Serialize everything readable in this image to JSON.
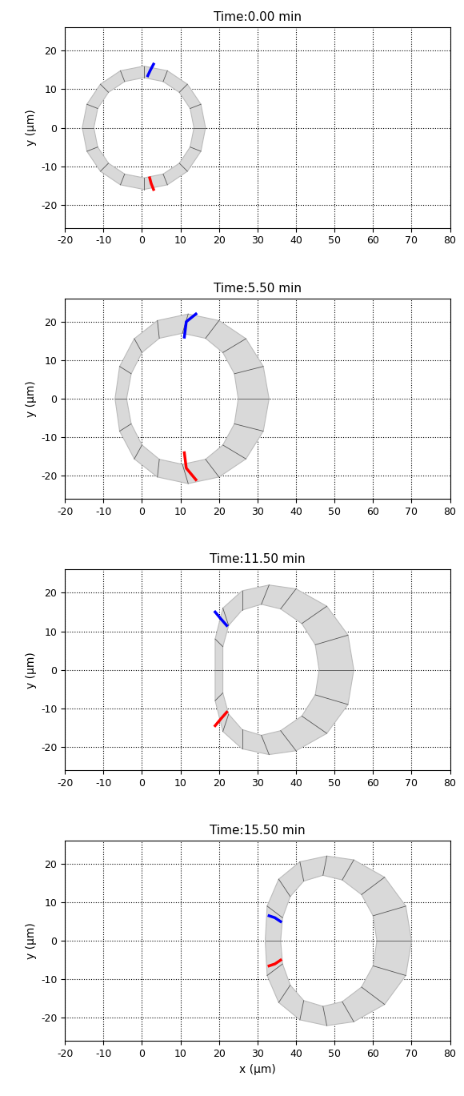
{
  "chart_data": [
    {
      "type": "shape",
      "title": "Time:0.00 min",
      "ylabel": "y (μm)",
      "xlim": [
        -20,
        80
      ],
      "ylim": [
        -26,
        26
      ],
      "xticks": [
        -20,
        -10,
        0,
        10,
        20,
        30,
        40,
        50,
        60,
        70,
        80
      ],
      "yticks": [
        -20,
        -10,
        0,
        10,
        20
      ],
      "grid": true,
      "outer": {
        "x": [
          16.5,
          15.3,
          11.8,
          6.6,
          0.5,
          -5.6,
          -10.8,
          -14.3,
          -15.5,
          -14.3,
          -10.8,
          -5.6,
          0.5,
          6.6,
          11.8,
          15.3
        ],
        "y": [
          0,
          6.1,
          11.3,
          14.8,
          16,
          14.8,
          11.3,
          6.1,
          0,
          -6.1,
          -11.3,
          -14.8,
          -16,
          -14.8,
          -11.3,
          -6.1
        ]
      },
      "inner": {
        "x": [
          13.5,
          12.5,
          9.7,
          5.5,
          0.5,
          -4.5,
          -8.7,
          -11.5,
          -12.5,
          -11.5,
          -8.7,
          -4.5,
          0.5,
          5.5,
          9.7,
          12.5
        ],
        "y": [
          0,
          5,
          9.2,
          12,
          13,
          12,
          9.2,
          5,
          0,
          -5,
          -9.2,
          -12,
          -13,
          -12,
          -9.2,
          -5
        ]
      },
      "markers": [
        {
          "color": "#0000ff",
          "x": [
            1.5,
            2.2,
            3
          ],
          "y": [
            13.5,
            15,
            16.5
          ]
        },
        {
          "color": "#ff0000",
          "x": [
            2,
            2.4,
            3
          ],
          "y": [
            -13,
            -14.5,
            -16
          ]
        }
      ]
    },
    {
      "type": "shape",
      "title": "Time:5.50 min",
      "ylabel": "y (μm)",
      "xlim": [
        -20,
        80
      ],
      "ylim": [
        -26,
        26
      ],
      "xticks": [
        -20,
        -10,
        0,
        10,
        20,
        30,
        40,
        50,
        60,
        70,
        80
      ],
      "yticks": [
        -20,
        -10,
        0,
        10,
        20
      ],
      "grid": true,
      "outer": {
        "x": [
          33,
          31.5,
          27,
          20,
          12,
          4,
          -2,
          -5.8,
          -7,
          -5.8,
          -2,
          4,
          12,
          20,
          27,
          31.5
        ],
        "y": [
          0,
          8.4,
          15.6,
          20.3,
          22,
          20.3,
          15.6,
          8.4,
          0,
          -8.4,
          -15.6,
          -20.3,
          -22,
          -20.3,
          -15.6,
          -8.4
        ]
      },
      "inner": {
        "x": [
          25,
          24,
          21,
          16.5,
          10.5,
          4.5,
          0,
          -2.8,
          -4,
          -2.8,
          0,
          4.5,
          10.5,
          16.5,
          21,
          24
        ],
        "y": [
          0,
          6.5,
          12,
          15.7,
          17,
          15.7,
          12,
          6.5,
          0,
          -6.5,
          -12,
          -15.7,
          -17,
          -15.7,
          -12,
          -6.5
        ]
      },
      "markers": [
        {
          "color": "#0000ff",
          "x": [
            11,
            11.5,
            14
          ],
          "y": [
            16,
            20,
            22
          ]
        },
        {
          "color": "#ff0000",
          "x": [
            11,
            11.5,
            14
          ],
          "y": [
            -14,
            -18,
            -21
          ]
        }
      ]
    },
    {
      "type": "shape",
      "title": "Time:11.50 min",
      "ylabel": "y (μm)",
      "xlim": [
        -20,
        80
      ],
      "ylim": [
        -26,
        26
      ],
      "xticks": [
        -20,
        -10,
        0,
        10,
        20,
        30,
        40,
        50,
        60,
        70,
        80
      ],
      "yticks": [
        -20,
        -10,
        0,
        10,
        20
      ],
      "grid": true,
      "outer": {
        "x": [
          55,
          53.5,
          48,
          40,
          33,
          26,
          21,
          19,
          19,
          19,
          21,
          26,
          33,
          40,
          48,
          53.5
        ],
        "y": [
          0,
          9,
          16.5,
          21,
          22,
          20.5,
          16,
          8,
          0,
          -8,
          -16,
          -20.5,
          -22,
          -21,
          -16.5,
          -9
        ]
      },
      "inner": {
        "x": [
          46,
          45,
          41.5,
          36,
          31,
          26,
          22.5,
          21,
          21,
          21,
          22.5,
          26,
          31,
          36,
          41.5,
          45
        ],
        "y": [
          0,
          6.5,
          12,
          15.8,
          17,
          15.5,
          11.5,
          6,
          0,
          -6,
          -11.5,
          -15.5,
          -17,
          -15.8,
          -12,
          -6.5
        ]
      },
      "markers": [
        {
          "color": "#0000ff",
          "x": [
            19,
            20.5,
            22
          ],
          "y": [
            15,
            13.2,
            11.5
          ]
        },
        {
          "color": "#ff0000",
          "x": [
            19,
            20.5,
            22
          ],
          "y": [
            -14.5,
            -12.7,
            -11
          ]
        }
      ]
    },
    {
      "type": "shape",
      "title": "Time:15.50 min",
      "xlabel": "x (μm)",
      "ylabel": "y (μm)",
      "xlim": [
        -20,
        80
      ],
      "ylim": [
        -26,
        26
      ],
      "xticks": [
        -20,
        -10,
        0,
        10,
        20,
        30,
        40,
        50,
        60,
        70,
        80
      ],
      "yticks": [
        -20,
        -10,
        0,
        10,
        20
      ],
      "grid": true,
      "outer": {
        "x": [
          70,
          68.5,
          63,
          55,
          48,
          41,
          35.5,
          32.5,
          32,
          32.5,
          35.5,
          41,
          48,
          55,
          63,
          68.5
        ],
        "y": [
          0,
          9,
          16.5,
          21,
          22,
          20.5,
          16,
          9,
          0,
          -9,
          -16,
          -20.5,
          -22,
          -21,
          -16.5,
          -9
        ]
      },
      "inner": {
        "x": [
          61,
          60,
          57,
          52,
          47,
          42,
          38.5,
          36.5,
          36,
          36.5,
          38.5,
          42,
          47,
          52,
          57,
          60
        ],
        "y": [
          0,
          6.5,
          12,
          15.8,
          17,
          15.5,
          11.5,
          6,
          0,
          -6,
          -11.5,
          -15.5,
          -17,
          -15.8,
          -12,
          -6.5
        ]
      },
      "markers": [
        {
          "color": "#0000ff",
          "x": [
            33,
            34.5,
            36
          ],
          "y": [
            6.5,
            6,
            5
          ]
        },
        {
          "color": "#ff0000",
          "x": [
            33,
            34.5,
            36
          ],
          "y": [
            -6.5,
            -6,
            -5
          ]
        }
      ]
    }
  ]
}
